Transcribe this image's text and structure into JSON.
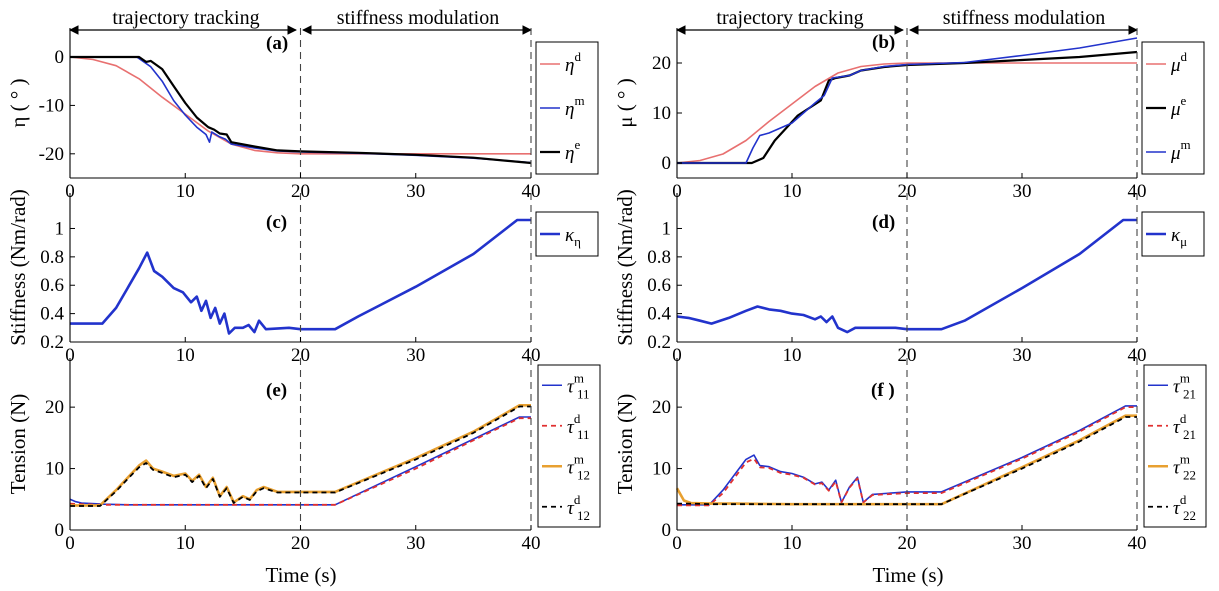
{
  "figure": {
    "time_label": "Time (s)",
    "phases": {
      "left": "trajectory tracking",
      "right": "stiffness modulation"
    }
  },
  "chart_data": [
    {
      "type": "line",
      "panel": "(a)",
      "ylabel": "η ( ° )",
      "xlim": [
        0,
        40
      ],
      "ylim": [
        -25,
        6
      ],
      "xticks": [
        0,
        10,
        20,
        30,
        40
      ],
      "yticks": [
        -20,
        -10,
        0
      ],
      "vlines": [
        20,
        40
      ],
      "legend": [
        {
          "sym": "η",
          "sup": "d"
        },
        {
          "sym": "η",
          "sup": "m"
        },
        {
          "sym": "η",
          "sup": "e"
        }
      ],
      "series": [
        {
          "color": "#e87070",
          "width": 1.6,
          "dash": "",
          "x": [
            0,
            2,
            4,
            6,
            8,
            10,
            12,
            14,
            16,
            18,
            20,
            25,
            30,
            35,
            40
          ],
          "y": [
            0,
            -0.5,
            -1.8,
            -4.5,
            -8.3,
            -11.8,
            -15.3,
            -18,
            -19.3,
            -19.8,
            -20,
            -20,
            -20,
            -20,
            -20
          ]
        },
        {
          "color": "#2233cc",
          "width": 1.6,
          "dash": "",
          "x": [
            0,
            5.8,
            7,
            8,
            9,
            10,
            11,
            11.8,
            12.1,
            12.3,
            13,
            13.5,
            14,
            16,
            18,
            20,
            25,
            30,
            35,
            40
          ],
          "y": [
            0,
            0,
            -2,
            -5,
            -9,
            -12,
            -14.5,
            -16,
            -17.6,
            -15.5,
            -16.5,
            -17,
            -18,
            -18.8,
            -19.4,
            -19.6,
            -19.9,
            -20.3,
            -20.9,
            -21.8
          ]
        },
        {
          "color": "#000000",
          "width": 2.2,
          "dash": "",
          "x": [
            0,
            6,
            6.6,
            7,
            8,
            9,
            10,
            11,
            12,
            12.5,
            13,
            13.6,
            14,
            16,
            18,
            20,
            25,
            30,
            35,
            40
          ],
          "y": [
            0,
            0,
            -1,
            -0.8,
            -2.5,
            -6,
            -9.5,
            -12.5,
            -14.5,
            -15,
            -15.8,
            -16,
            -17.6,
            -18.5,
            -19.3,
            -19.5,
            -19.8,
            -20.2,
            -20.8,
            -21.9
          ]
        }
      ]
    },
    {
      "type": "line",
      "panel": "(b)",
      "ylabel": "μ ( ° )",
      "xlim": [
        0,
        40
      ],
      "ylim": [
        -3,
        27
      ],
      "xticks": [
        0,
        10,
        20,
        30,
        40
      ],
      "yticks": [
        0,
        10,
        20
      ],
      "vlines": [
        20,
        40
      ],
      "legend": [
        {
          "sym": "μ",
          "sup": "d"
        },
        {
          "sym": "μ",
          "sup": "e"
        },
        {
          "sym": "μ",
          "sup": "m"
        }
      ],
      "series": [
        {
          "color": "#e87070",
          "width": 1.6,
          "dash": "",
          "x": [
            0,
            2,
            4,
            6,
            8,
            10,
            12,
            14,
            16,
            18,
            20,
            25,
            30,
            35,
            40
          ],
          "y": [
            0,
            0.5,
            1.8,
            4.5,
            8.3,
            11.8,
            15.3,
            18,
            19.3,
            19.8,
            20,
            20,
            20,
            20,
            20
          ]
        },
        {
          "color": "#000000",
          "width": 2.2,
          "dash": "",
          "x": [
            0,
            6.5,
            7.5,
            8.5,
            9.5,
            10.5,
            11.5,
            12.5,
            13.2,
            13.8,
            15,
            16,
            18,
            20,
            25,
            30,
            35,
            40
          ],
          "y": [
            0,
            0,
            1,
            4.5,
            7,
            9.5,
            11,
            12.5,
            16.5,
            17,
            17.5,
            18.5,
            19.2,
            19.6,
            20,
            20.6,
            21.2,
            22.2
          ]
        },
        {
          "color": "#2233cc",
          "width": 1.6,
          "dash": "",
          "x": [
            0,
            6,
            6.6,
            7.2,
            8,
            9,
            10,
            11,
            12,
            12.8,
            13.5,
            15,
            16,
            18,
            20,
            25,
            30,
            35,
            40
          ],
          "y": [
            0,
            0,
            3,
            5.5,
            6,
            7,
            8,
            10,
            12,
            13.5,
            17,
            17.5,
            18.5,
            19.3,
            19.7,
            20.1,
            21.5,
            23,
            25
          ]
        }
      ]
    },
    {
      "type": "line",
      "panel": "(c)",
      "ylabel": "Stiffness (Nm/rad)",
      "xlim": [
        0,
        40
      ],
      "ylim": [
        0.2,
        1.25
      ],
      "xticks": [
        0,
        10,
        20,
        30,
        40
      ],
      "yticks": [
        0.2,
        0.4,
        0.6,
        0.8,
        1
      ],
      "vlines": [
        20,
        40
      ],
      "legend": [
        {
          "sym": "κ",
          "sub": "η"
        }
      ],
      "series": [
        {
          "color": "#2233cc",
          "width": 2.6,
          "dash": "",
          "x": [
            0,
            2.8,
            4,
            5,
            6,
            6.7,
            7.3,
            8,
            9,
            9.8,
            10.5,
            11,
            11.4,
            11.8,
            12.2,
            12.6,
            13,
            13.4,
            13.8,
            14.3,
            15,
            15.5,
            16,
            16.4,
            17,
            19,
            20,
            23,
            25,
            30,
            35,
            38.8,
            40
          ],
          "y": [
            0.33,
            0.33,
            0.44,
            0.58,
            0.72,
            0.83,
            0.7,
            0.66,
            0.58,
            0.55,
            0.48,
            0.52,
            0.42,
            0.49,
            0.37,
            0.44,
            0.33,
            0.4,
            0.26,
            0.3,
            0.3,
            0.32,
            0.27,
            0.35,
            0.29,
            0.3,
            0.29,
            0.29,
            0.38,
            0.59,
            0.82,
            1.06,
            1.06
          ]
        }
      ]
    },
    {
      "type": "line",
      "panel": "(d)",
      "ylabel": "Stiffness (Nm/rad)",
      "xlim": [
        0,
        40
      ],
      "ylim": [
        0.2,
        1.25
      ],
      "xticks": [
        0,
        10,
        20,
        30,
        40
      ],
      "yticks": [
        0.2,
        0.4,
        0.6,
        0.8,
        1
      ],
      "vlines": [
        20,
        40
      ],
      "legend": [
        {
          "sym": "κ",
          "sub": "μ"
        }
      ],
      "series": [
        {
          "color": "#2233cc",
          "width": 2.6,
          "dash": "",
          "x": [
            0,
            1,
            2,
            3,
            4.5,
            6,
            7,
            8,
            9,
            10,
            11,
            12,
            12.5,
            13,
            13.5,
            14,
            14.8,
            15.5,
            17,
            19,
            20,
            23,
            25,
            30,
            35,
            38.8,
            40
          ],
          "y": [
            0.38,
            0.37,
            0.35,
            0.33,
            0.37,
            0.42,
            0.45,
            0.43,
            0.42,
            0.4,
            0.39,
            0.36,
            0.38,
            0.34,
            0.38,
            0.3,
            0.27,
            0.3,
            0.3,
            0.3,
            0.29,
            0.29,
            0.35,
            0.58,
            0.82,
            1.06,
            1.06
          ]
        }
      ]
    },
    {
      "type": "line",
      "panel": "(e)",
      "ylabel": "Tension (N)",
      "xlabel": "Time (s)",
      "xlim": [
        0,
        40
      ],
      "ylim": [
        0,
        28
      ],
      "xticks": [
        0,
        10,
        20,
        30,
        40
      ],
      "yticks": [
        0,
        10,
        20
      ],
      "vlines": [
        20,
        40
      ],
      "legend": [
        {
          "sym": "τ",
          "sup": "m",
          "sub": "11"
        },
        {
          "sym": "τ",
          "sup": "d",
          "sub": "11"
        },
        {
          "sym": "τ",
          "sup": "m",
          "sub": "12"
        },
        {
          "sym": "τ",
          "sup": "d",
          "sub": "12"
        }
      ],
      "series": [
        {
          "color": "#2233cc",
          "width": 1.6,
          "dash": "",
          "x": [
            0,
            0.5,
            1,
            3,
            5,
            10,
            15,
            20,
            23,
            30,
            35,
            39,
            40
          ],
          "y": [
            5,
            4.6,
            4.4,
            4.2,
            4.1,
            4.1,
            4.1,
            4.1,
            4.1,
            10.3,
            14.8,
            18.4,
            18.4
          ]
        },
        {
          "color": "#e03030",
          "width": 1.8,
          "dash": "5,4",
          "x": [
            0,
            1,
            3,
            5,
            10,
            15,
            20,
            23,
            30,
            35,
            39,
            40
          ],
          "y": [
            4.3,
            4.2,
            4.1,
            4.1,
            4.1,
            4.1,
            4.1,
            4.1,
            10,
            14.6,
            18.2,
            18.2
          ]
        },
        {
          "color": "#e8a030",
          "width": 2.6,
          "dash": "",
          "x": [
            0,
            2.6,
            4,
            5,
            6,
            6.6,
            7.2,
            8,
            9,
            10,
            10.6,
            11.2,
            11.8,
            12.4,
            13,
            13.6,
            14.2,
            15,
            15.6,
            16.2,
            16.8,
            18,
            20,
            23,
            30,
            35,
            39,
            40
          ],
          "y": [
            4,
            4,
            6.5,
            8.5,
            10.5,
            11.3,
            10,
            9.5,
            8.8,
            9.2,
            8,
            9,
            7,
            8.5,
            5.5,
            7,
            4.5,
            5.5,
            5,
            6.5,
            7,
            6.2,
            6.2,
            6.2,
            11.7,
            16,
            20.3,
            20.3
          ]
        },
        {
          "color": "#000000",
          "width": 1.8,
          "dash": "5,4",
          "x": [
            0,
            2.6,
            4,
            5,
            6,
            6.6,
            7.2,
            8,
            9,
            10,
            10.6,
            11.2,
            11.8,
            12.4,
            13,
            13.6,
            14.2,
            15,
            15.6,
            16.2,
            16.8,
            18,
            20,
            23,
            30,
            35,
            39,
            40
          ],
          "y": [
            3.9,
            3.9,
            6.3,
            8.3,
            10.2,
            10.9,
            9.8,
            9.3,
            8.6,
            9,
            7.8,
            8.8,
            6.8,
            8.3,
            5.4,
            6.8,
            4.4,
            5.4,
            4.9,
            6.3,
            6.8,
            6.1,
            6.1,
            6.1,
            11.5,
            15.8,
            20.1,
            20.1
          ]
        }
      ]
    },
    {
      "type": "line",
      "panel": "(f )",
      "ylabel": "Tension (N)",
      "xlabel": "Time (s)",
      "xlim": [
        0,
        40
      ],
      "ylim": [
        0,
        28
      ],
      "xticks": [
        0,
        10,
        20,
        30,
        40
      ],
      "yticks": [
        0,
        10,
        20
      ],
      "vlines": [
        20,
        40
      ],
      "legend": [
        {
          "sym": "τ",
          "sup": "m",
          "sub": "21"
        },
        {
          "sym": "τ",
          "sup": "d",
          "sub": "21"
        },
        {
          "sym": "τ",
          "sup": "m",
          "sub": "22"
        },
        {
          "sym": "τ",
          "sup": "d",
          "sub": "22"
        }
      ],
      "series": [
        {
          "color": "#2233cc",
          "width": 1.6,
          "dash": "",
          "x": [
            0,
            2.8,
            4,
            5,
            6,
            6.7,
            7.2,
            8,
            9,
            10,
            11,
            12,
            12.6,
            13.2,
            13.8,
            14.3,
            15,
            15.7,
            16.2,
            17,
            20,
            23,
            30,
            35,
            39,
            40
          ],
          "y": [
            4.1,
            4.1,
            6.5,
            9,
            11.5,
            12.2,
            10.5,
            10.3,
            9.5,
            9.2,
            8.6,
            7.5,
            7.8,
            6.5,
            8.1,
            4.5,
            7,
            8.6,
            4.5,
            5.8,
            6.2,
            6.2,
            11.8,
            16.2,
            20.2,
            20.2
          ]
        },
        {
          "color": "#e03030",
          "width": 1.8,
          "dash": "5,4",
          "x": [
            0,
            2.8,
            4,
            5,
            6,
            6.7,
            7.2,
            8,
            9,
            10,
            11,
            12,
            12.6,
            13.2,
            13.8,
            14.3,
            15,
            15.7,
            16.2,
            17,
            20,
            23,
            30,
            35,
            39,
            40
          ],
          "y": [
            4,
            4,
            6,
            8.5,
            11,
            11.6,
            10.2,
            10.1,
            9.3,
            9,
            8.5,
            7.4,
            7.6,
            6.4,
            7.9,
            4.5,
            6.9,
            8.4,
            4.5,
            5.7,
            6,
            6,
            11.6,
            16,
            20,
            20
          ]
        },
        {
          "color": "#e8a030",
          "width": 2.6,
          "dash": "",
          "x": [
            0,
            0.6,
            1.2,
            3,
            5,
            10,
            15,
            20,
            23,
            30,
            35,
            39,
            40
          ],
          "y": [
            6.8,
            4.8,
            4.4,
            4.3,
            4.3,
            4.2,
            4.2,
            4.2,
            4.2,
            10.2,
            14.6,
            18.6,
            18.6
          ]
        },
        {
          "color": "#000000",
          "width": 1.8,
          "dash": "5,4",
          "x": [
            0,
            1,
            3,
            5,
            10,
            15,
            20,
            23,
            30,
            35,
            39,
            40
          ],
          "y": [
            4.3,
            4.3,
            4.2,
            4.2,
            4.2,
            4.2,
            4.2,
            4.2,
            10,
            14.4,
            18.4,
            18.4
          ]
        }
      ]
    }
  ]
}
